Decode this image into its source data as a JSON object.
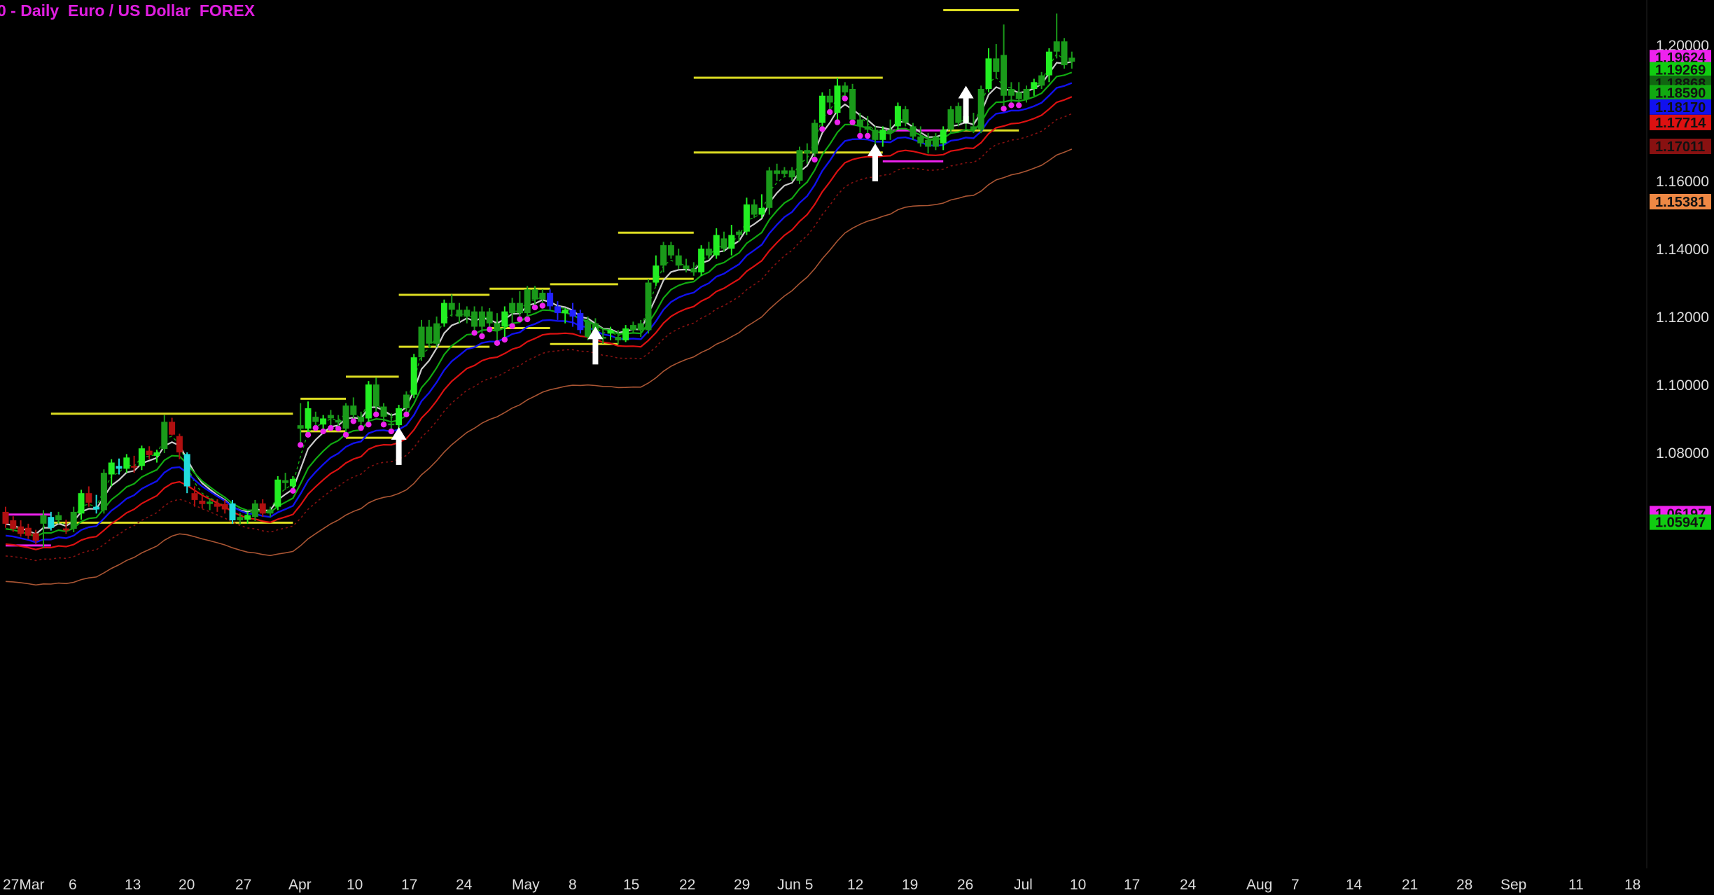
{
  "header": {
    "title": "0 - Daily  Euro / US Dollar  FOREX"
  },
  "colors": {
    "background": "#000000",
    "bull_candle": "#22ee22",
    "bull_candle_dark": "#1a9a1a",
    "bear_candle": "#b01010",
    "blue_candle": "#2222ff",
    "cyan_candle": "#22dddd",
    "level_line": "#dddd22",
    "magenta": "#ee22ee",
    "ma_white": "#cccccc",
    "ma_green": "#11aa11",
    "ma_blue": "#1111ee",
    "ma_red": "#dd1111",
    "ma_darkred": "#881111",
    "ma_brown": "#aa5533",
    "arrow": "#ffffff"
  },
  "chart_data": {
    "type": "candlestick",
    "title": "0 - Daily  Euro / US Dollar  FOREX",
    "y_axis": {
      "ticks": [
        "1.20000",
        "1.16000",
        "1.14000",
        "1.12000",
        "1.10000",
        "1.08000"
      ],
      "range": [
        1.0515,
        1.2128
      ],
      "position": "right"
    },
    "x_axis": {
      "ticks": [
        "27Mar",
        "6",
        "13",
        "20",
        "27",
        "Apr",
        "10",
        "17",
        "24",
        "May",
        "8",
        "15",
        "22",
        "29",
        "Jun 5",
        "12",
        "19",
        "26",
        "Jul",
        "10",
        "17",
        "24",
        "Aug",
        "7",
        "14",
        "21",
        "28",
        "Sep",
        "11",
        "18"
      ]
    },
    "price_labels": [
      {
        "text": "1.19624",
        "value": 1.19624,
        "color": "#ee22ee",
        "text_color": "#111111"
      },
      {
        "text": "1.19269",
        "value": 1.19269,
        "color": "#11cc11",
        "text_color": "#111111"
      },
      {
        "text": "1.18868",
        "value": 1.18868,
        "color": "#116611",
        "text_color": "#111111"
      },
      {
        "text": "1.18590",
        "value": 1.1859,
        "color": "#11aa11",
        "text_color": "#111111"
      },
      {
        "text": "1.18170",
        "value": 1.1817,
        "color": "#1111ee",
        "text_color": "#111111"
      },
      {
        "text": "1.17714",
        "value": 1.17714,
        "color": "#dd1111",
        "text_color": "#111111"
      },
      {
        "text": "1.17011",
        "value": 1.17011,
        "color": "#881111",
        "text_color": "#111111"
      },
      {
        "text": "1.15381",
        "value": 1.15381,
        "color": "#ee8844",
        "text_color": "#111111"
      },
      {
        "text": "1.06197",
        "value": 1.06197,
        "color": "#ee22ee",
        "text_color": "#111111"
      },
      {
        "text": "1.05947",
        "value": 1.05947,
        "color": "#11cc11",
        "text_color": "#111111"
      }
    ],
    "horizontal_levels": [
      {
        "y": 1.0914,
        "x0": 6,
        "x1": 38,
        "color": "yellow"
      },
      {
        "y": 1.0593,
        "x0": 6,
        "x1": 38,
        "color": "yellow"
      },
      {
        "y": 1.0958,
        "x0": 39,
        "x1": 45,
        "color": "yellow"
      },
      {
        "y": 1.0862,
        "x0": 39,
        "x1": 45,
        "color": "yellow"
      },
      {
        "y": 1.1023,
        "x0": 45,
        "x1": 52,
        "color": "yellow"
      },
      {
        "y": 1.0843,
        "x0": 45,
        "x1": 52,
        "color": "yellow"
      },
      {
        "y": 1.1264,
        "x0": 52,
        "x1": 64,
        "color": "yellow"
      },
      {
        "y": 1.1111,
        "x0": 52,
        "x1": 64,
        "color": "yellow"
      },
      {
        "y": 1.1282,
        "x0": 64,
        "x1": 72,
        "color": "yellow"
      },
      {
        "y": 1.1166,
        "x0": 64,
        "x1": 72,
        "color": "yellow"
      },
      {
        "y": 1.1295,
        "x0": 72,
        "x1": 81,
        "color": "yellow"
      },
      {
        "y": 1.1119,
        "x0": 72,
        "x1": 81,
        "color": "yellow"
      },
      {
        "y": 1.1447,
        "x0": 81,
        "x1": 91,
        "color": "yellow"
      },
      {
        "y": 1.1311,
        "x0": 81,
        "x1": 91,
        "color": "yellow"
      },
      {
        "y": 1.1903,
        "x0": 91,
        "x1": 116,
        "color": "yellow"
      },
      {
        "y": 1.1683,
        "x0": 91,
        "x1": 116,
        "color": "yellow"
      },
      {
        "y": 1.1748,
        "x0": 116,
        "x1": 124,
        "color": "magenta"
      },
      {
        "y": 1.1657,
        "x0": 116,
        "x1": 124,
        "color": "magenta"
      },
      {
        "y": 1.2102,
        "x0": 124,
        "x1": 134,
        "color": "yellow"
      },
      {
        "y": 1.1748,
        "x0": 124,
        "x1": 134,
        "color": "yellow"
      },
      {
        "y": 1.0617,
        "x0": 0,
        "x1": 6,
        "color": "magenta"
      },
      {
        "y": 1.0526,
        "x0": 0,
        "x1": 6,
        "color": "magenta"
      }
    ],
    "arrows": [
      {
        "x": 52,
        "y": 1.0792
      },
      {
        "x": 78,
        "y": 1.1088
      },
      {
        "x": 115,
        "y": 1.1627
      },
      {
        "x": 127,
        "y": 1.1797
      }
    ],
    "candles_ohlc": [
      [
        1.0625,
        1.064,
        1.0578,
        1.059
      ],
      [
        1.06,
        1.0612,
        1.0566,
        1.0575
      ],
      [
        1.0582,
        1.06,
        1.0552,
        1.056
      ],
      [
        1.0578,
        1.059,
        1.0545,
        1.0555
      ],
      [
        1.0562,
        1.0572,
        1.053,
        1.054
      ],
      [
        1.059,
        1.063,
        1.052,
        1.0615
      ],
      [
        1.061,
        1.0625,
        1.057,
        1.0578
      ],
      [
        1.06,
        1.0625,
        1.059,
        1.0615
      ],
      [
        1.0576,
        1.0602,
        1.056,
        1.057
      ],
      [
        1.0575,
        1.064,
        1.0565,
        1.0625
      ],
      [
        1.062,
        1.069,
        1.0602,
        1.068
      ],
      [
        1.068,
        1.07,
        1.064,
        1.0652
      ],
      [
        1.064,
        1.0675,
        1.062,
        1.0632
      ],
      [
        1.063,
        1.075,
        1.062,
        1.074
      ],
      [
        1.0735,
        1.078,
        1.07,
        1.077
      ],
      [
        1.076,
        1.0782,
        1.0735,
        1.0752
      ],
      [
        1.0752,
        1.0795,
        1.074,
        1.0785
      ],
      [
        1.076,
        1.079,
        1.074,
        1.0755
      ],
      [
        1.076,
        1.082,
        1.0748,
        1.0812
      ],
      [
        1.0805,
        1.0818,
        1.078,
        1.0792
      ],
      [
        1.079,
        1.0808,
        1.077,
        1.08
      ],
      [
        1.081,
        1.091,
        1.0798,
        1.089
      ],
      [
        1.089,
        1.0902,
        1.085,
        1.0852
      ],
      [
        1.0848,
        1.0855,
        1.078,
        1.08
      ],
      [
        1.0795,
        1.08,
        1.068,
        1.07
      ],
      [
        1.068,
        1.07,
        1.064,
        1.066
      ],
      [
        1.0658,
        1.0672,
        1.0635,
        1.0648
      ],
      [
        1.0648,
        1.0665,
        1.063,
        1.0655
      ],
      [
        1.065,
        1.0662,
        1.0625,
        1.064
      ],
      [
        1.0648,
        1.066,
        1.062,
        1.0632
      ],
      [
        1.065,
        1.066,
        1.059,
        1.06
      ],
      [
        1.06,
        1.0622,
        1.0588,
        1.061
      ],
      [
        1.0602,
        1.0625,
        1.059,
        1.0615
      ],
      [
        1.061,
        1.066,
        1.0598,
        1.065
      ],
      [
        1.065,
        1.0662,
        1.061,
        1.062
      ],
      [
        1.062,
        1.064,
        1.061,
        1.0632
      ],
      [
        1.064,
        1.073,
        1.063,
        1.072
      ],
      [
        1.0718,
        1.074,
        1.069,
        1.071
      ],
      [
        1.07,
        1.073,
        1.0695,
        1.0722
      ],
      [
        1.088,
        1.0945,
        1.083,
        1.087
      ],
      [
        1.087,
        1.095,
        1.086,
        1.093
      ],
      [
        1.0905,
        1.092,
        1.088,
        1.089
      ],
      [
        1.0882,
        1.091,
        1.087,
        1.09
      ],
      [
        1.09,
        1.0925,
        1.088,
        1.091
      ],
      [
        1.0895,
        1.091,
        1.0878,
        1.0888
      ],
      [
        1.087,
        1.0945,
        1.086,
        1.0938
      ],
      [
        1.0938,
        1.0962,
        1.09,
        1.091
      ],
      [
        1.0905,
        1.092,
        1.088,
        1.089
      ],
      [
        1.09,
        1.101,
        1.089,
        1.1
      ],
      [
        1.1,
        1.102,
        1.092,
        1.0935
      ],
      [
        1.0935,
        1.0945,
        1.089,
        1.0905
      ],
      [
        1.0885,
        1.0915,
        1.087,
        1.088
      ],
      [
        1.088,
        1.094,
        1.086,
        1.093
      ],
      [
        1.093,
        1.098,
        1.092,
        1.097
      ],
      [
        1.097,
        1.109,
        1.096,
        1.108
      ],
      [
        1.108,
        1.119,
        1.107,
        1.117
      ],
      [
        1.117,
        1.119,
        1.111,
        1.112
      ],
      [
        1.112,
        1.12,
        1.111,
        1.118
      ],
      [
        1.118,
        1.125,
        1.117,
        1.124
      ],
      [
        1.124,
        1.1265,
        1.12,
        1.122
      ],
      [
        1.122,
        1.124,
        1.118,
        1.12
      ],
      [
        1.12,
        1.123,
        1.118,
        1.122
      ],
      [
        1.1215,
        1.123,
        1.116,
        1.117
      ],
      [
        1.117,
        1.123,
        1.115,
        1.1215
      ],
      [
        1.1215,
        1.1225,
        1.117,
        1.118
      ],
      [
        1.118,
        1.121,
        1.113,
        1.116
      ],
      [
        1.117,
        1.123,
        1.114,
        1.1215
      ],
      [
        1.121,
        1.1255,
        1.118,
        1.124
      ],
      [
        1.124,
        1.1275,
        1.12,
        1.121
      ],
      [
        1.121,
        1.129,
        1.12,
        1.128
      ],
      [
        1.128,
        1.129,
        1.1235,
        1.125
      ],
      [
        1.125,
        1.128,
        1.124,
        1.127
      ],
      [
        1.127,
        1.128,
        1.122,
        1.123
      ],
      [
        1.123,
        1.1245,
        1.119,
        1.121
      ],
      [
        1.121,
        1.1225,
        1.118,
        1.122
      ],
      [
        1.122,
        1.124,
        1.117,
        1.12
      ],
      [
        1.121,
        1.122,
        1.115,
        1.116
      ],
      [
        1.114,
        1.12,
        1.113,
        1.1185
      ],
      [
        1.118,
        1.1195,
        1.114,
        1.115
      ],
      [
        1.114,
        1.1165,
        1.112,
        1.1135
      ],
      [
        1.115,
        1.117,
        1.113,
        1.116
      ],
      [
        1.114,
        1.116,
        1.1118,
        1.113
      ],
      [
        1.113,
        1.1175,
        1.1125,
        1.1165
      ],
      [
        1.116,
        1.1185,
        1.115,
        1.1175
      ],
      [
        1.118,
        1.119,
        1.114,
        1.116
      ],
      [
        1.116,
        1.131,
        1.115,
        1.13
      ],
      [
        1.13,
        1.138,
        1.129,
        1.135
      ],
      [
        1.135,
        1.142,
        1.133,
        1.141
      ],
      [
        1.141,
        1.142,
        1.137,
        1.138
      ],
      [
        1.138,
        1.14,
        1.134,
        1.135
      ],
      [
        1.135,
        1.137,
        1.133,
        1.134
      ],
      [
        1.134,
        1.136,
        1.132,
        1.133
      ],
      [
        1.133,
        1.141,
        1.132,
        1.14
      ],
      [
        1.14,
        1.142,
        1.137,
        1.138
      ],
      [
        1.138,
        1.146,
        1.137,
        1.144
      ],
      [
        1.143,
        1.145,
        1.139,
        1.14
      ],
      [
        1.14,
        1.147,
        1.138,
        1.144
      ],
      [
        1.144,
        1.1455,
        1.142,
        1.145
      ],
      [
        1.145,
        1.155,
        1.144,
        1.153
      ],
      [
        1.153,
        1.1545,
        1.149,
        1.15
      ],
      [
        1.15,
        1.156,
        1.149,
        1.152
      ],
      [
        1.152,
        1.164,
        1.15,
        1.163
      ],
      [
        1.163,
        1.165,
        1.16,
        1.162
      ],
      [
        1.162,
        1.164,
        1.161,
        1.163
      ],
      [
        1.163,
        1.164,
        1.16,
        1.161
      ],
      [
        1.16,
        1.17,
        1.159,
        1.169
      ],
      [
        1.169,
        1.171,
        1.165,
        1.168
      ],
      [
        1.168,
        1.178,
        1.167,
        1.177
      ],
      [
        1.177,
        1.186,
        1.176,
        1.185
      ],
      [
        1.185,
        1.187,
        1.181,
        1.183
      ],
      [
        1.18,
        1.1903,
        1.178,
        1.188
      ],
      [
        1.188,
        1.189,
        1.185,
        1.186
      ],
      [
        1.187,
        1.1885,
        1.178,
        1.178
      ],
      [
        1.178,
        1.18,
        1.174,
        1.176
      ],
      [
        1.176,
        1.179,
        1.174,
        1.175
      ],
      [
        1.175,
        1.176,
        1.17,
        1.172
      ],
      [
        1.172,
        1.176,
        1.17,
        1.175
      ],
      [
        1.175,
        1.178,
        1.172,
        1.174
      ],
      [
        1.176,
        1.183,
        1.175,
        1.182
      ],
      [
        1.181,
        1.182,
        1.176,
        1.177
      ],
      [
        1.176,
        1.177,
        1.172,
        1.173
      ],
      [
        1.173,
        1.176,
        1.17,
        1.171
      ],
      [
        1.172,
        1.174,
        1.168,
        1.17
      ],
      [
        1.17,
        1.174,
        1.169,
        1.173
      ],
      [
        1.171,
        1.176,
        1.169,
        1.175
      ],
      [
        1.175,
        1.182,
        1.174,
        1.181
      ],
      [
        1.182,
        1.183,
        1.176,
        1.177
      ],
      [
        1.177,
        1.18,
        1.175,
        1.179
      ],
      [
        1.176,
        1.18,
        1.174,
        1.175
      ],
      [
        1.175,
        1.188,
        1.174,
        1.187
      ],
      [
        1.187,
        1.199,
        1.186,
        1.196
      ],
      [
        1.196,
        1.2002,
        1.19,
        1.192
      ],
      [
        1.197,
        1.206,
        1.182,
        1.185
      ],
      [
        1.185,
        1.189,
        1.183,
        1.187
      ],
      [
        1.186,
        1.189,
        1.183,
        1.184
      ],
      [
        1.184,
        1.188,
        1.183,
        1.187
      ],
      [
        1.187,
        1.19,
        1.185,
        1.189
      ],
      [
        1.188,
        1.192,
        1.187,
        1.191
      ],
      [
        1.191,
        1.199,
        1.189,
        1.198
      ],
      [
        1.198,
        1.2092,
        1.196,
        1.201
      ],
      [
        1.201,
        1.202,
        1.193,
        1.194
      ],
      [
        1.195,
        1.198,
        1.193,
        1.1962
      ]
    ]
  }
}
